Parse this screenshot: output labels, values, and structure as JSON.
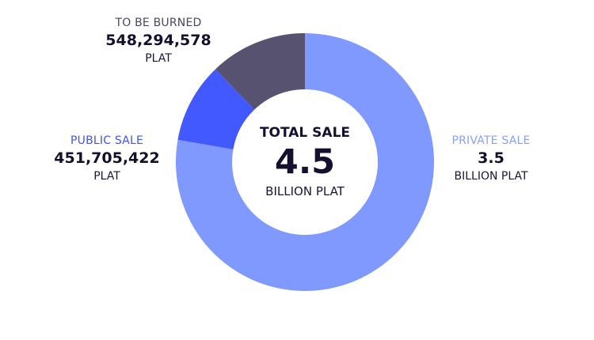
{
  "center": {
    "title": "TOTAL SALE",
    "value": "4.5",
    "unit": "BILLION PLAT"
  },
  "labels": {
    "burned": {
      "name": "TO BE BURNED",
      "value": "548,294,578",
      "unit": "PLAT"
    },
    "public": {
      "name": "PUBLIC SALE",
      "value": "451,705,422",
      "unit": "PLAT"
    },
    "private": {
      "name": "PRIVATE SALE",
      "value": "3.5",
      "unit": "BILLION PLAT"
    }
  },
  "colors": {
    "private": "#7f99ff",
    "public": "#4259ff",
    "burned": "#57526f",
    "burned_label": "#4a4565",
    "public_label": "#3f55ee",
    "private_label": "#8aa0ff"
  },
  "chart_data": {
    "type": "pie",
    "categories": [
      "PRIVATE SALE",
      "PUBLIC SALE",
      "TO BE BURNED"
    ],
    "values": [
      3500000000,
      451705422,
      548294578
    ],
    "unit": "PLAT",
    "total": 4500000000
  }
}
